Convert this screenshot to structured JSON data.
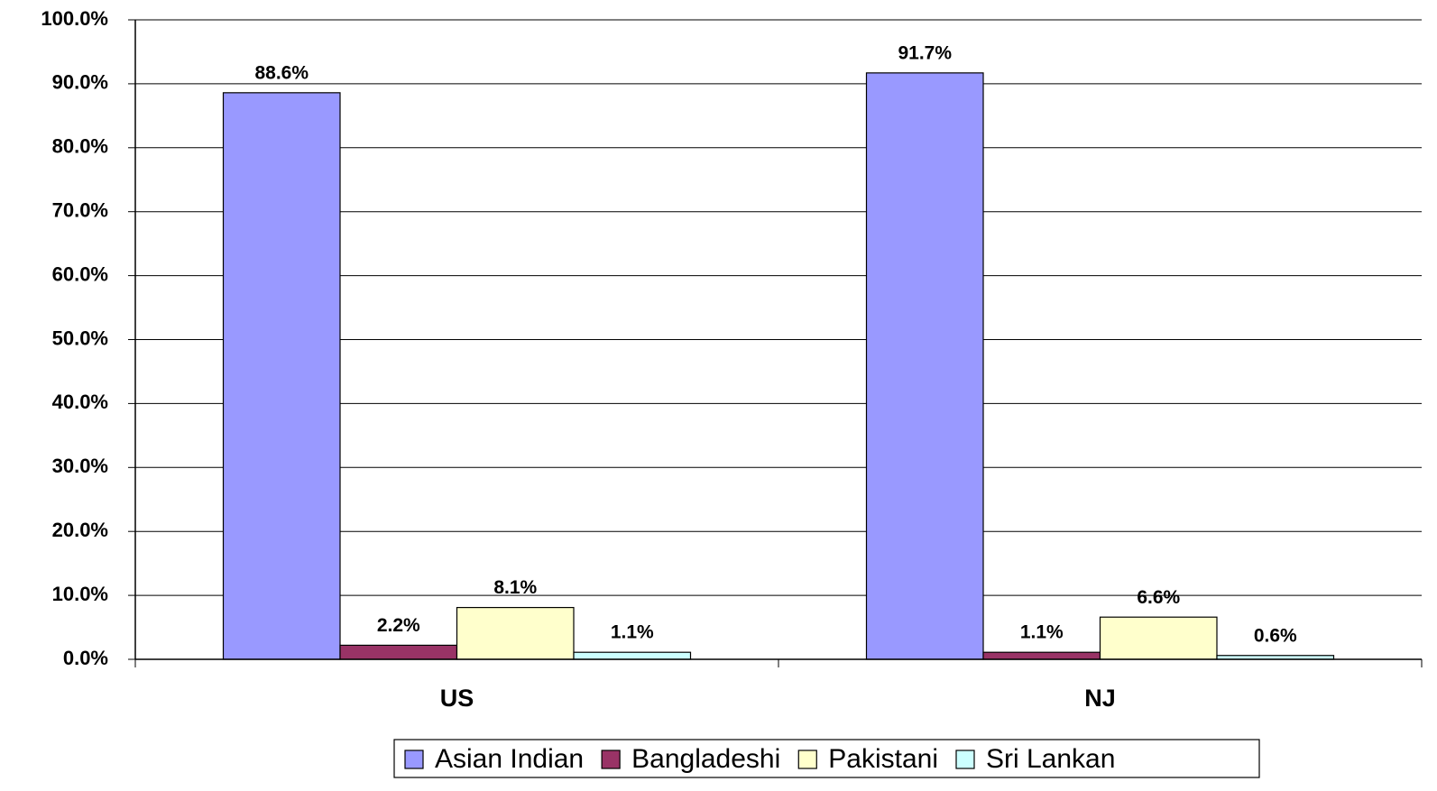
{
  "chart_data": {
    "type": "bar",
    "categories": [
      "US",
      "NJ"
    ],
    "series": [
      {
        "name": "Asian Indian",
        "color": "#9999ff",
        "values": [
          88.6,
          91.7
        ],
        "value_labels": [
          "88.6%",
          "91.7%"
        ]
      },
      {
        "name": "Bangladeshi",
        "color": "#993366",
        "values": [
          2.2,
          1.1
        ],
        "value_labels": [
          "2.2%",
          "1.1%"
        ]
      },
      {
        "name": "Pakistani",
        "color": "#ffffcc",
        "values": [
          8.1,
          6.6
        ],
        "value_labels": [
          "8.1%",
          "6.6%"
        ]
      },
      {
        "name": "Sri Lankan",
        "color": "#ccffff",
        "values": [
          1.1,
          0.6
        ],
        "value_labels": [
          "1.1%",
          "0.6%"
        ]
      }
    ],
    "ylim": [
      0,
      100
    ],
    "yticks": [
      {
        "value": 0,
        "label": "0.0%"
      },
      {
        "value": 10,
        "label": "10.0%"
      },
      {
        "value": 20,
        "label": "20.0%"
      },
      {
        "value": 30,
        "label": "30.0%"
      },
      {
        "value": 40,
        "label": "40.0%"
      },
      {
        "value": 50,
        "label": "50.0%"
      },
      {
        "value": 60,
        "label": "60.0%"
      },
      {
        "value": 70,
        "label": "70.0%"
      },
      {
        "value": 80,
        "label": "80.0%"
      },
      {
        "value": 90,
        "label": "90.0%"
      },
      {
        "value": 100,
        "label": "100.0%"
      }
    ],
    "grid": true,
    "legend": "bottom"
  }
}
